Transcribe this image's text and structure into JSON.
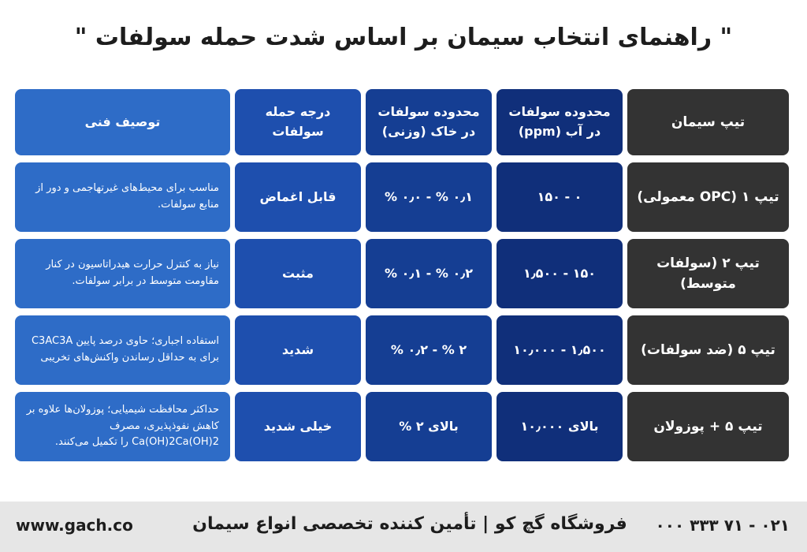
{
  "title": "\" راهنمای انتخاب سیمان بر اساس شدت حمله سولفات \"",
  "headers": {
    "description": "توصیف فنی",
    "grade": "درجه حمله سولفات",
    "soil": "محدوده سولفات در خاک (وزنی)",
    "water": "محدوده سولفات در آب (ppm)",
    "type": "تیپ سیمان"
  },
  "rows": [
    {
      "description": "مناسب برای محیط‌های غیرتهاجمی و دور از منابع سولفات.",
      "grade": "قابل اغماض",
      "soil": "۰٫۱ % - ۰٫۰ %",
      "water": "۰ - ۱۵۰",
      "type": "تیپ ۱ (OPC معمولی)"
    },
    {
      "description": "نیاز به کنترل حرارت هیدراتاسیون در کنار مقاومت متوسط در برابر سولفات.",
      "grade": "مثبت",
      "soil": "۰٫۲ % - ۰٫۱ %",
      "water": "۱۵۰ - ۱٫۵۰۰",
      "type": "تیپ ۲ (سولفات متوسط)"
    },
    {
      "description": "استفاده اجباری؛ حاوی درصد پایین C3AC3A برای به حداقل رساندن واکنش‌های تخریبی",
      "grade": "شدید",
      "soil": "۲ % - ۰٫۲ %",
      "water": "۱٫۵۰۰ - ۱۰٫۰۰۰",
      "type": "تیپ ۵ (ضد سولفات)"
    },
    {
      "description": "حداکثر محافظت شیمیایی؛ پوزولان‌ها علاوه بر کاهش نفوذپذیری، مصرف Ca(OH)2Ca(OH)2 را تکمیل می‌کنند.",
      "grade": "خیلی شدید",
      "soil": "بالای ۲ %",
      "water": "بالای ۱۰٫۰۰۰",
      "type": "تیپ ۵ + پوزولان"
    }
  ],
  "footer": {
    "website": "www.gach.co",
    "slogan": "فروشگاه گچ کو | تأمین کننده تخصصی انواع سیمان",
    "phone": "۰۲۱ - ۷۱ ۳۳۳ ۰۰۰"
  }
}
